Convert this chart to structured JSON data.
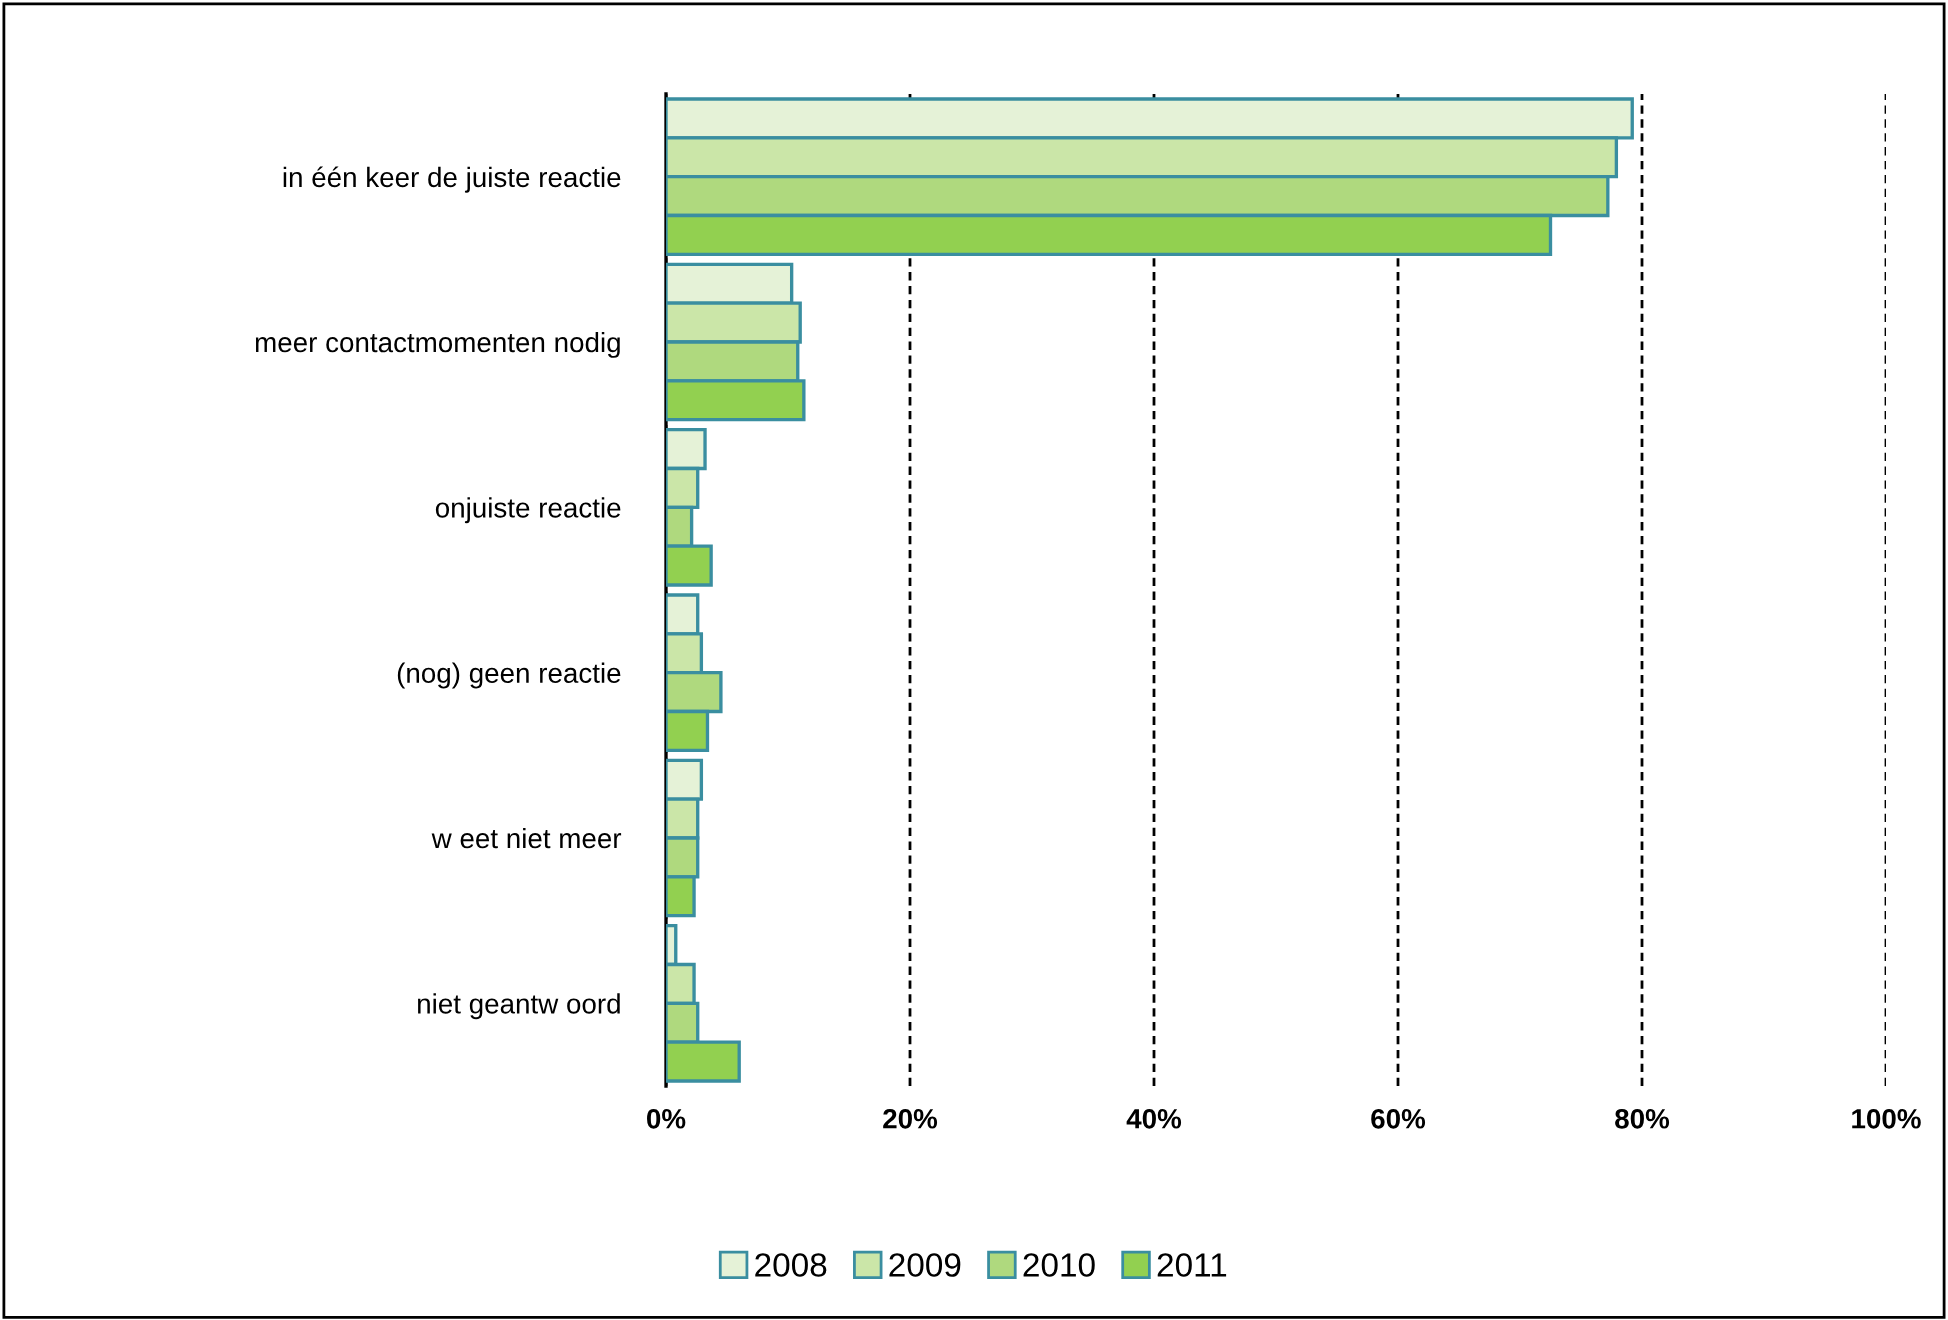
{
  "chart_data": {
    "type": "bar",
    "orientation": "horizontal",
    "categories": [
      "in één keer de juiste reactie",
      "meer contactmomenten nodig",
      "onjuiste reactie",
      "(nog) geen reactie",
      "w eet niet meer",
      "niet geantw oord"
    ],
    "series": [
      {
        "name": "2008",
        "color": "#e5f2d7",
        "values": [
          79.2,
          10.3,
          3.2,
          2.6,
          2.9,
          0.8
        ]
      },
      {
        "name": "2009",
        "color": "#cbe6a8",
        "values": [
          77.9,
          11.0,
          2.6,
          2.9,
          2.6,
          2.3
        ]
      },
      {
        "name": "2010",
        "color": "#afd97e",
        "values": [
          77.2,
          10.8,
          2.1,
          4.5,
          2.6,
          2.6
        ]
      },
      {
        "name": "2011",
        "color": "#92d050",
        "values": [
          72.5,
          11.3,
          3.7,
          3.4,
          2.3,
          6.0
        ]
      }
    ],
    "xlim": [
      0,
      100
    ],
    "xticks": [
      {
        "value": 0,
        "label": "0%"
      },
      {
        "value": 20,
        "label": "20%"
      },
      {
        "value": 40,
        "label": "40%"
      },
      {
        "value": 60,
        "label": "60%"
      },
      {
        "value": 80,
        "label": "80%"
      },
      {
        "value": 100,
        "label": "100%"
      }
    ],
    "grid": "x",
    "legend": "bottom"
  }
}
